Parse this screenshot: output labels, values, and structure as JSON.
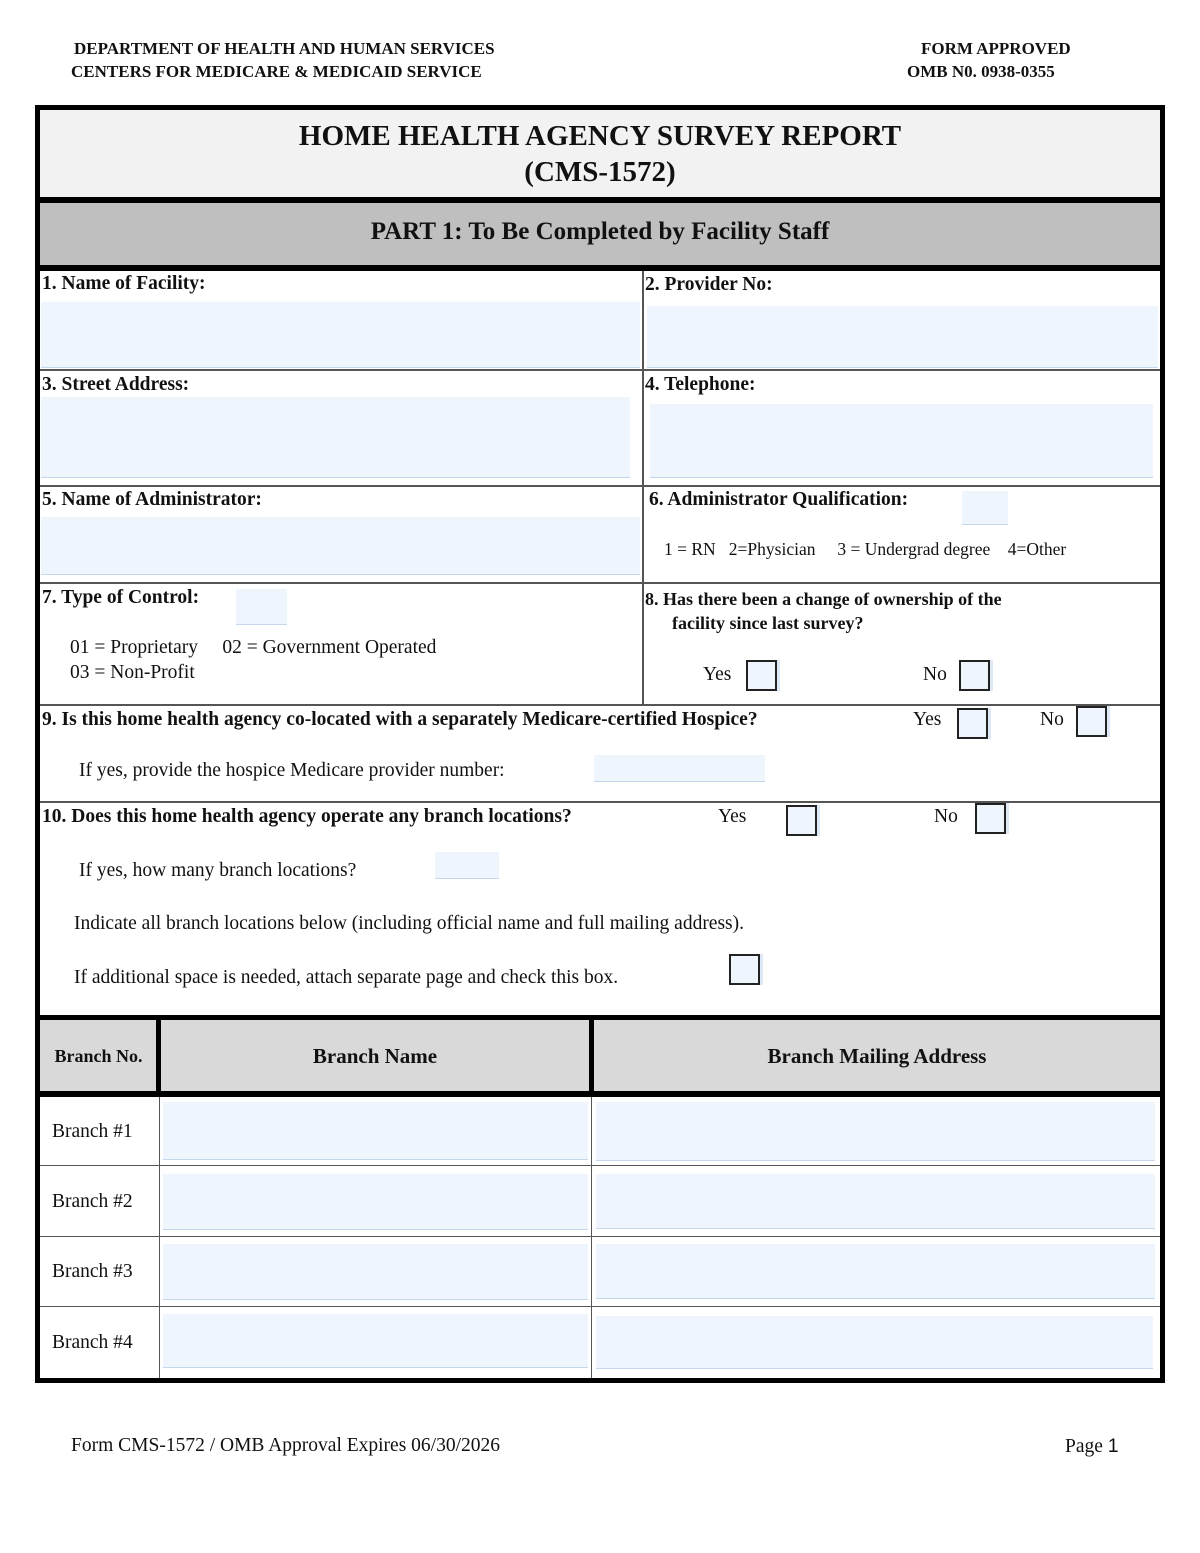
{
  "header": {
    "dept_line1": "DEPARTMENT OF HEALTH AND  HUMAN SERVICES",
    "dept_line2": "CENTERS FOR MEDICARE &  MEDICAID SERVICE",
    "approved_line1": "FORM APPROVED",
    "approved_line2": "OMB N0. 0938-0355"
  },
  "title": {
    "line1": "HOME HEALTH AGENCY SURVEY REPORT",
    "line2": "(CMS-1572)"
  },
  "part": "PART 1: To Be Completed by Facility Staff",
  "fields": {
    "f1": "1. Name of Facility:",
    "f2": "2. Provider No:",
    "f3": "3. Street Address:",
    "f4": "4. Telephone:",
    "f5": "5. Name of Administrator:",
    "f6": "6. Administrator Qualification:",
    "f6_codes": "1 = RN   2=Physician     3 = Undergrad degree    4=Other",
    "f7": "7. Type of Control:",
    "f7_codes1": "01 = Proprietary     02 = Government Operated",
    "f7_codes2": "03 = Non-Profit",
    "f8_line1": "8. Has there been a change of ownership of the",
    "f8_line2": "facility since last survey?",
    "f9": "9. Is this home health agency co-located with a separately Medicare-certified Hospice?",
    "f9_sub": "If yes, provide the hospice Medicare provider number:",
    "f10": "10. Does this home health agency operate any branch locations?",
    "f10_sub": "If yes, how many branch locations?",
    "f10_indicate": "Indicate all branch locations below (including official name and full mailing address).",
    "f10_additional": "If additional space is needed, attach separate page and check this box.",
    "yes": "Yes",
    "no": "No"
  },
  "table": {
    "headers": [
      "Branch No.",
      "Branch Name",
      "Branch Mailing Address"
    ],
    "rows": [
      "Branch #1",
      "Branch #2",
      "Branch #3",
      "Branch #4"
    ]
  },
  "footer": {
    "left": "Form CMS-1572 / OMB Approval Expires 06/30/2026",
    "page_label": "Page",
    "page_num": "1"
  }
}
